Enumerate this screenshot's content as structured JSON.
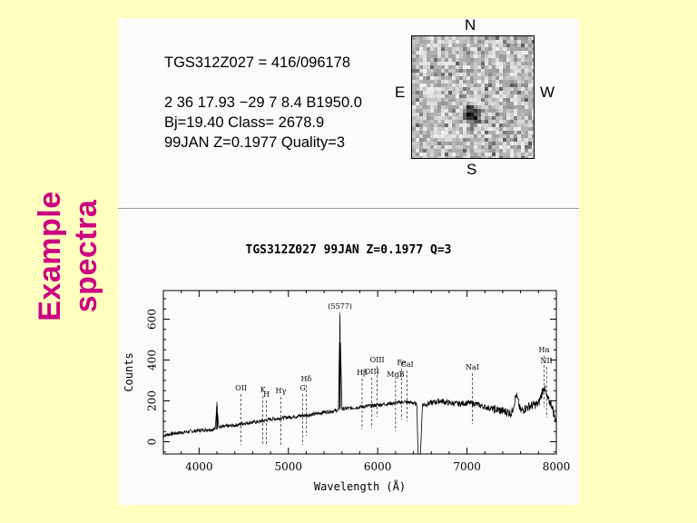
{
  "slide": {
    "side_title": "Example spectra",
    "side_title_color": "#cc0080",
    "background": "#ffffc0"
  },
  "object_info": {
    "line1": "TGS312Z027 = 416/096178",
    "line2": "2 36 17.93 −29 7 8.4 B1950.0",
    "line3": "Bj=19.40 Class= 2678.9",
    "line4": "99JAN Z=0.1977 Quality=3"
  },
  "thumbnail": {
    "compass": {
      "north": "N",
      "south": "S",
      "east": "E",
      "west": "W"
    }
  },
  "chart_data": {
    "type": "line",
    "title": "TGS312Z027 99JAN Z=0.1977 Q=3",
    "xlabel": "Wavelength (Å)",
    "ylabel": "Counts",
    "xlim": [
      3600,
      8000
    ],
    "ylim": [
      -60,
      740
    ],
    "x_ticks": [
      4000,
      5000,
      6000,
      7000,
      8000
    ],
    "x_tick_labels": [
      "4000",
      "5000",
      "6000",
      "7000",
      "8000"
    ],
    "y_ticks": [
      0,
      200,
      400,
      600
    ],
    "y_tick_labels": [
      "0",
      "200",
      "400",
      "600"
    ],
    "grid": false,
    "series": [
      {
        "x": [
          3600,
          3700,
          3800,
          3900,
          4000,
          4100,
          4180,
          4200,
          4220,
          4300,
          4400,
          4500,
          4600,
          4700,
          4800,
          4900,
          5000,
          5100,
          5200,
          5300,
          5400,
          5500,
          5560,
          5577,
          5600,
          5700,
          5800,
          5900,
          6000,
          6100,
          6200,
          6300,
          6400,
          6440,
          6450,
          6480,
          6500,
          6600,
          6700,
          6800,
          6900,
          7000,
          7100,
          7200,
          7300,
          7400,
          7500,
          7550,
          7600,
          7700,
          7800,
          7860,
          7900,
          7950,
          7980,
          8000
        ],
        "values": [
          30,
          40,
          45,
          50,
          55,
          60,
          60,
          195,
          70,
          75,
          80,
          90,
          95,
          100,
          110,
          115,
          120,
          125,
          130,
          135,
          145,
          150,
          155,
          620,
          160,
          165,
          170,
          175,
          180,
          185,
          190,
          195,
          190,
          180,
          -60,
          -60,
          180,
          190,
          200,
          190,
          185,
          190,
          185,
          170,
          160,
          150,
          140,
          230,
          150,
          175,
          185,
          270,
          210,
          180,
          120,
          110
        ]
      }
    ],
    "annotations": [
      {
        "label": "(5577)",
        "x": 5577
      },
      {
        "label": "OII",
        "x": 4470
      },
      {
        "label": "K",
        "x": 4715
      },
      {
        "label": "H",
        "x": 4755
      },
      {
        "label": "Hγ",
        "x": 4915
      },
      {
        "label": "G",
        "x": 5160
      },
      {
        "label": "Hδ",
        "x": 5200
      },
      {
        "label": "Hβ",
        "x": 5825
      },
      {
        "label": "OIII",
        "x": 5935
      },
      {
        "label": "OIII",
        "x": 5995
      },
      {
        "label": "Fe",
        "x": 6265
      },
      {
        "label": "MgB",
        "x": 6200
      },
      {
        "label": "CaI",
        "x": 6330
      },
      {
        "label": "NaI",
        "x": 7060
      },
      {
        "label": "Hα",
        "x": 7865
      },
      {
        "label": "NII",
        "x": 7890
      }
    ]
  }
}
